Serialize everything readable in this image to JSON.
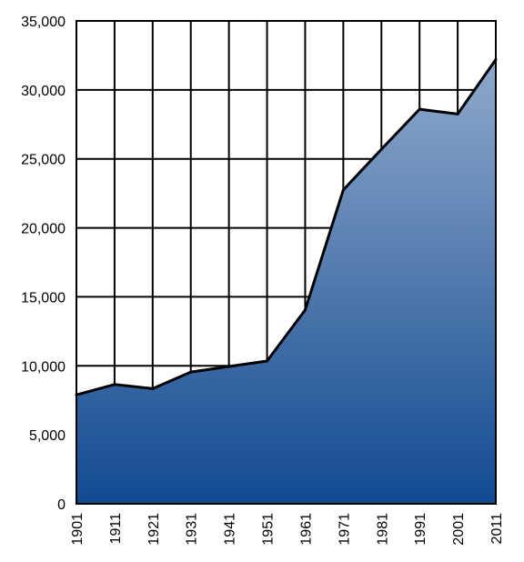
{
  "chart_data": {
    "type": "area",
    "title": "",
    "xlabel": "",
    "ylabel": "",
    "x": [
      "1901",
      "1911",
      "1921",
      "1931",
      "1941",
      "1951",
      "1961",
      "1971",
      "1981",
      "1991",
      "2001",
      "2011"
    ],
    "series": [
      {
        "values": [
          7900,
          8650,
          8350,
          9550,
          9950,
          10350,
          14050,
          22750,
          25700,
          28600,
          28250,
          32200
        ]
      }
    ],
    "ylim": [
      0,
      35000
    ],
    "yticks": [
      0,
      5000,
      10000,
      15000,
      20000,
      25000,
      30000,
      35000
    ],
    "ytick_labels": [
      "0",
      "5,000",
      "10,000",
      "15,000",
      "20,000",
      "25,000",
      "30,000",
      "35,000"
    ],
    "grid": true,
    "legend": "none",
    "colors": {
      "fill_top": "#8fa9cb",
      "fill_bottom": "#124a91",
      "line": "#000000",
      "grid": "#000000",
      "background": "#ffffff"
    }
  }
}
